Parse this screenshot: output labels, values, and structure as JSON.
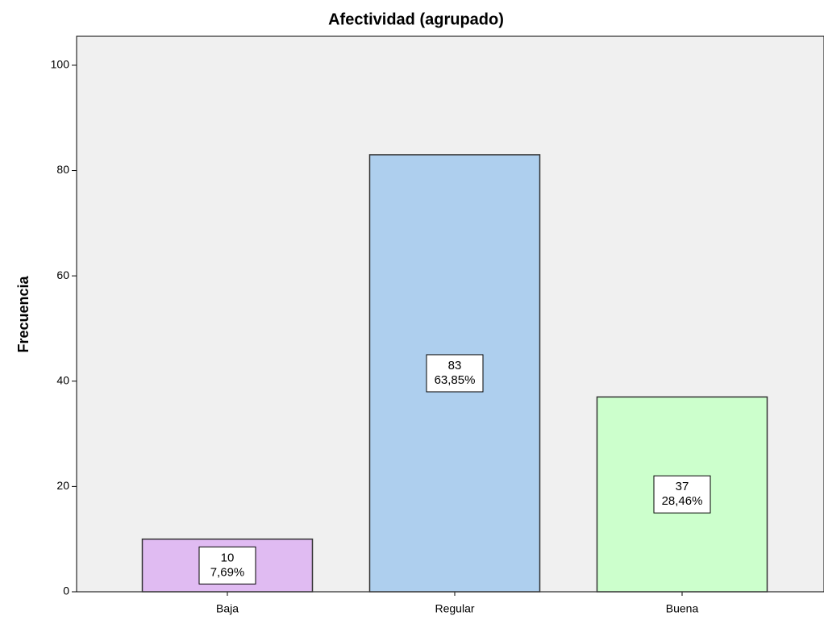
{
  "chart_data": {
    "type": "bar",
    "title": "Afectividad (agrupado)",
    "y_label": "Frecuencia",
    "categories": [
      "Baja",
      "Regular",
      "Buena"
    ],
    "values": [
      10,
      83,
      37
    ],
    "percentages": [
      7.69,
      63.85,
      28.46
    ],
    "percentage_labels": [
      "7,69%",
      "63,85%",
      "28,46%"
    ],
    "colors": [
      "#e0bbf2",
      "#aecfee",
      "#ccffcc"
    ],
    "ylim": [
      0,
      105.5
    ],
    "yticks": [
      0,
      20,
      40,
      60,
      80,
      100
    ],
    "grid": false
  }
}
